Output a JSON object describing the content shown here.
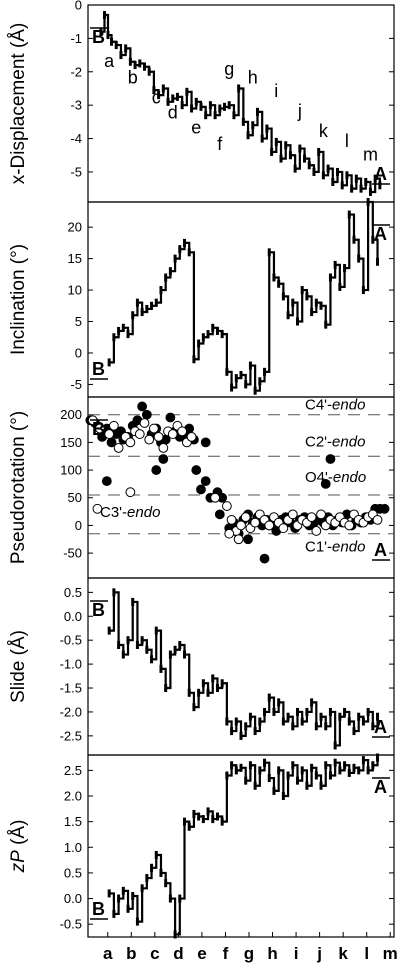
{
  "chart_data": [
    {
      "type": "line",
      "ylabel": "x-Displacement (Å)",
      "yticks": [
        "0",
        "-1",
        "-2",
        "-3",
        "-4",
        "-5"
      ],
      "ylim": [
        0,
        -5.9
      ],
      "tick_values": [
        0,
        -1,
        -2,
        -3,
        -4,
        -5
      ],
      "top_marker": "B",
      "bottom_marker": "A",
      "segment_labels": [
        {
          "text": "a",
          "x": 0.9,
          "y": -1.85
        },
        {
          "text": "b",
          "x": 1.9,
          "y": -2.35
        },
        {
          "text": "c",
          "x": 2.9,
          "y": -2.95
        },
        {
          "text": "d",
          "x": 3.6,
          "y": -3.4
        },
        {
          "text": "e",
          "x": 4.6,
          "y": -3.85
        },
        {
          "text": "f",
          "x": 5.6,
          "y": -4.35
        },
        {
          "text": "g",
          "x": 6.0,
          "y": -2.1
        },
        {
          "text": "h",
          "x": 7.0,
          "y": -2.35
        },
        {
          "text": "i",
          "x": 8.0,
          "y": -2.75
        },
        {
          "text": "j",
          "x": 9.0,
          "y": -3.35
        },
        {
          "text": "k",
          "x": 10.0,
          "y": -3.95
        },
        {
          "text": "l",
          "x": 11.0,
          "y": -4.25
        },
        {
          "text": "m",
          "x": 12.0,
          "y": -4.65
        }
      ],
      "series": [
        {
          "x": [
            0.55,
            0.7,
            0.85,
            1.0,
            1.2,
            1.4,
            1.6,
            1.8,
            2.0,
            2.2,
            2.4,
            2.6,
            2.8,
            3.0,
            3.2,
            3.4,
            3.6,
            3.8,
            4.0,
            4.2,
            4.4,
            4.6,
            4.8,
            5.0,
            5.2,
            5.4,
            5.6,
            5.8,
            6.0,
            6.2,
            6.4,
            6.6,
            6.8,
            7.0,
            7.2,
            7.4,
            7.6,
            7.8,
            8.0,
            8.2,
            8.4,
            8.6,
            8.8,
            9.0,
            9.2,
            9.4,
            9.6,
            9.8,
            10.0,
            10.2,
            10.4,
            10.6,
            10.8,
            11.0,
            11.2,
            11.4,
            11.6,
            11.8,
            12.0,
            12.2,
            12.4
          ],
          "y": [
            -0.8,
            -0.3,
            -0.9,
            -1.1,
            -1.2,
            -1.5,
            -1.3,
            -1.7,
            -1.8,
            -1.75,
            -1.85,
            -2.0,
            -2.55,
            -2.7,
            -2.5,
            -2.9,
            -2.8,
            -2.75,
            -3.0,
            -2.6,
            -3.1,
            -2.9,
            -3.05,
            -3.3,
            -3.0,
            -3.3,
            -3.1,
            -3.05,
            -3.0,
            -3.3,
            -2.5,
            -3.5,
            -3.9,
            -3.6,
            -3.2,
            -4.0,
            -3.7,
            -4.4,
            -4.1,
            -4.6,
            -4.2,
            -4.5,
            -4.9,
            -4.3,
            -4.6,
            -4.8,
            -5.0,
            -4.4,
            -5.1,
            -4.9,
            -5.3,
            -5.0,
            -5.4,
            -5.1,
            -5.5,
            -5.2,
            -5.5,
            -5.3,
            -5.6,
            -5.2,
            -5.4
          ]
        }
      ]
    },
    {
      "type": "line",
      "ylabel": "Inclination (°)",
      "yticks": [
        "20",
        "15",
        "10",
        "5",
        "0",
        "-5"
      ],
      "ylim": [
        24,
        -7
      ],
      "tick_values": [
        20,
        15,
        10,
        5,
        0,
        -5
      ],
      "top_marker": "A",
      "bottom_marker": "B",
      "series": [
        {
          "x": [
            0.9,
            1.1,
            1.3,
            1.5,
            1.7,
            1.9,
            2.1,
            2.3,
            2.5,
            2.7,
            2.9,
            3.1,
            3.3,
            3.5,
            3.7,
            3.9,
            4.1,
            4.3,
            4.5,
            4.7,
            4.9,
            5.1,
            5.3,
            5.5,
            5.7,
            5.9,
            6.1,
            6.3,
            6.5,
            6.7,
            6.9,
            7.1,
            7.3,
            7.5,
            7.7,
            7.9,
            8.1,
            8.3,
            8.5,
            8.7,
            8.9,
            9.1,
            9.3,
            9.5,
            9.7,
            9.9,
            10.1,
            10.3,
            10.5,
            10.7,
            10.9,
            11.1,
            11.3,
            11.5,
            11.7,
            11.9,
            12.1,
            12.3
          ],
          "y": [
            -1.5,
            2.5,
            3.5,
            4.0,
            3.0,
            6.0,
            8.0,
            6.5,
            7.0,
            7.5,
            8.0,
            10.0,
            12.0,
            13.0,
            15.0,
            16.5,
            17.5,
            16.0,
            -1.0,
            1.5,
            2.5,
            3.0,
            4.0,
            3.5,
            3.0,
            -3.0,
            -5.5,
            -4.0,
            -3.5,
            -5.0,
            -2.0,
            -6.0,
            -4.5,
            -3.0,
            16.0,
            12.0,
            11.0,
            9.0,
            6.0,
            8.0,
            5.0,
            10.0,
            9.0,
            6.5,
            8.0,
            7.5,
            4.5,
            12.0,
            14.0,
            10.5,
            13.5,
            22.0,
            18.0,
            15.0,
            10.0,
            24.0,
            18.0,
            14.5
          ]
        }
      ]
    },
    {
      "type": "scatter",
      "ylabel": "Pseudorotation (°)",
      "yticks": [
        "200",
        "150",
        "100",
        "50",
        "0",
        "-50"
      ],
      "ylim": [
        232,
        -95
      ],
      "tick_values": [
        200,
        150,
        100,
        50,
        0,
        -50
      ],
      "top_marker": "B",
      "bottom_marker": "A",
      "reference_lines": [
        {
          "value": 200,
          "label": "C4'-endo"
        },
        {
          "value": 125,
          "label": "C2'-endo"
        },
        {
          "value": 55,
          "label": "O4'-endo"
        },
        {
          "value": -15,
          "label": "C1'-endo"
        }
      ],
      "c3_label": "C3'-endo",
      "c2_label": "C2'-endo",
      "label_tags": {
        "c4": "C4'-endo",
        "c2": "C2'-endo",
        "o4": "O4'-endo",
        "c3": "C3'-endo",
        "c1": "C1'-endo"
      },
      "series": [
        {
          "name": "filled",
          "x": [
            0.1,
            0.3,
            0.6,
            0.8,
            1.0,
            1.2,
            1.4,
            1.5,
            1.7,
            1.9,
            2.1,
            2.3,
            2.5,
            2.7,
            2.9,
            3.1,
            3.3,
            3.5,
            3.7,
            3.9,
            4.1,
            4.3,
            4.5,
            0.8,
            2.9,
            3.2,
            4.6,
            4.8,
            5.0,
            5.2,
            5.5,
            5.7,
            5.0,
            6.2,
            6.4,
            6.6,
            6.8,
            7.0,
            7.2,
            7.4,
            7.6,
            7.8,
            8.0,
            8.2,
            8.4,
            8.6,
            8.8,
            9.0,
            9.2,
            9.4,
            9.6,
            9.8,
            10.0,
            10.2,
            10.4,
            10.6,
            10.8,
            11.0,
            11.2,
            11.4,
            11.6,
            11.8,
            12.0,
            12.2,
            12.4,
            12.6,
            6.8,
            9.9,
            10.3,
            5.6,
            6.0,
            7.5,
            10.1
          ],
          "y": [
            190,
            185,
            160,
            175,
            150,
            165,
            170,
            155,
            160,
            180,
            190,
            215,
            200,
            165,
            175,
            150,
            155,
            195,
            170,
            160,
            165,
            175,
            155,
            80,
            100,
            120,
            100,
            65,
            80,
            50,
            60,
            50,
            150,
            5,
            -15,
            10,
            -25,
            5,
            15,
            0,
            10,
            5,
            -10,
            10,
            15,
            5,
            -5,
            10,
            15,
            0,
            5,
            10,
            5,
            15,
            0,
            10,
            5,
            20,
            0,
            10,
            5,
            15,
            10,
            30,
            30,
            30,
            20,
            10,
            120,
            20,
            -5,
            -60,
            75
          ]
        },
        {
          "name": "open",
          "x": [
            0.2,
            0.5,
            0.9,
            1.1,
            1.3,
            1.6,
            1.8,
            2.0,
            2.2,
            2.4,
            2.6,
            2.8,
            3.0,
            3.2,
            3.4,
            3.6,
            3.8,
            4.0,
            4.2,
            4.4,
            0.4,
            1.8,
            5.4,
            6.1,
            6.3,
            6.5,
            6.7,
            6.9,
            7.1,
            7.3,
            7.5,
            7.7,
            7.9,
            8.1,
            8.3,
            8.5,
            8.7,
            8.9,
            9.1,
            9.3,
            9.5,
            9.7,
            9.9,
            10.1,
            10.3,
            10.5,
            10.7,
            10.9,
            11.1,
            11.3,
            11.5,
            11.7,
            11.9,
            12.1,
            12.3,
            6.0,
            6.4,
            5.9,
            7.7
          ],
          "y": [
            190,
            175,
            165,
            180,
            140,
            160,
            150,
            170,
            165,
            185,
            155,
            175,
            160,
            140,
            170,
            165,
            180,
            170,
            150,
            160,
            30,
            60,
            50,
            10,
            -10,
            0,
            15,
            -5,
            5,
            20,
            10,
            0,
            15,
            5,
            -5,
            10,
            20,
            0,
            10,
            5,
            15,
            -10,
            20,
            0,
            10,
            5,
            15,
            5,
            0,
            20,
            10,
            5,
            15,
            20,
            10,
            -15,
            -25,
            35,
            0
          ]
        }
      ]
    },
    {
      "type": "line",
      "ylabel": "Slide (Å)",
      "yticks": [
        "0.5",
        "0.0",
        "-0.5",
        "-1.0",
        "-1.5",
        "-2.0",
        "-2.5"
      ],
      "ylim": [
        0.8,
        -2.9
      ],
      "tick_values": [
        0.5,
        0.0,
        -0.5,
        -1.0,
        -1.5,
        -2.0,
        -2.5
      ],
      "top_marker": "B",
      "bottom_marker": "A",
      "series": [
        {
          "x": [
            0.9,
            1.1,
            1.3,
            1.5,
            1.7,
            1.9,
            2.1,
            2.3,
            2.5,
            2.7,
            2.9,
            3.1,
            3.3,
            3.5,
            3.7,
            3.9,
            4.1,
            4.3,
            4.5,
            4.7,
            4.9,
            5.1,
            5.3,
            5.5,
            5.7,
            5.9,
            6.1,
            6.3,
            6.5,
            6.7,
            6.9,
            7.1,
            7.3,
            7.5,
            7.7,
            7.9,
            8.1,
            8.3,
            8.5,
            8.7,
            8.9,
            9.1,
            9.3,
            9.5,
            9.7,
            9.9,
            10.1,
            10.3,
            10.5,
            10.7,
            10.9,
            11.1,
            11.3,
            11.5,
            11.7,
            11.9,
            12.1,
            12.3
          ],
          "y": [
            -0.3,
            0.5,
            -0.6,
            -0.8,
            -0.5,
            0.3,
            -0.6,
            -0.5,
            -0.7,
            -0.9,
            -0.3,
            -1.1,
            -1.5,
            -0.8,
            -0.7,
            -0.6,
            -0.8,
            -1.6,
            -1.9,
            -1.6,
            -1.4,
            -1.6,
            -1.3,
            -1.5,
            -1.4,
            -2.2,
            -2.4,
            -2.2,
            -2.5,
            -2.3,
            -2.1,
            -2.4,
            -2.2,
            -2.0,
            -1.7,
            -2.0,
            -1.8,
            -2.2,
            -2.1,
            -2.3,
            -2.0,
            -2.2,
            -2.0,
            -1.8,
            -2.3,
            -2.1,
            -2.3,
            -2.0,
            -2.7,
            -2.1,
            -2.0,
            -2.2,
            -2.4,
            -2.1,
            -2.2,
            -2.0,
            -2.3,
            -2.1
          ]
        }
      ]
    },
    {
      "type": "line",
      "ylabel": "zP (Å)",
      "ylabel_italic": "zP",
      "ylabel_rest": " (Å)",
      "yticks": [
        "2.5",
        "2.0",
        "1.5",
        "1.0",
        "0.5",
        "0.0",
        "-0.5"
      ],
      "ylim": [
        2.8,
        -0.75
      ],
      "tick_values": [
        2.5,
        2.0,
        1.5,
        1.0,
        0.5,
        0.0,
        -0.5
      ],
      "top_marker": "A",
      "bottom_marker": "B",
      "series": [
        {
          "x": [
            0.9,
            1.1,
            1.3,
            1.5,
            1.7,
            1.9,
            2.1,
            2.3,
            2.5,
            2.7,
            2.9,
            3.1,
            3.3,
            3.5,
            3.7,
            3.9,
            4.1,
            4.3,
            4.5,
            4.7,
            4.9,
            5.1,
            5.3,
            5.5,
            5.7,
            5.9,
            6.1,
            6.3,
            6.5,
            6.7,
            6.9,
            7.1,
            7.3,
            7.5,
            7.7,
            7.9,
            8.1,
            8.3,
            8.5,
            8.7,
            8.9,
            9.1,
            9.3,
            9.5,
            9.7,
            9.9,
            10.1,
            10.3,
            10.5,
            10.7,
            10.9,
            11.1,
            11.3,
            11.5,
            11.7,
            11.9,
            12.1,
            12.3
          ],
          "y": [
            0.1,
            -0.3,
            0.0,
            0.15,
            -0.2,
            0.05,
            -0.45,
            0.2,
            0.4,
            0.6,
            0.85,
            0.5,
            0.3,
            0.0,
            -0.7,
            0.0,
            1.5,
            1.4,
            1.65,
            1.6,
            1.55,
            1.7,
            1.55,
            1.6,
            1.5,
            2.4,
            2.6,
            2.5,
            2.55,
            2.3,
            2.6,
            2.2,
            2.5,
            2.65,
            2.35,
            2.1,
            2.5,
            2.0,
            2.4,
            2.6,
            2.3,
            2.5,
            2.2,
            2.55,
            2.4,
            2.2,
            2.6,
            2.4,
            2.65,
            2.5,
            2.6,
            2.45,
            2.55,
            2.5,
            2.7,
            2.5,
            2.6,
            2.75
          ]
        }
      ]
    }
  ],
  "x_categories": [
    "a",
    "b",
    "c",
    "d",
    "e",
    "f",
    "g",
    "h",
    "i",
    "j",
    "k",
    "l",
    "m"
  ]
}
